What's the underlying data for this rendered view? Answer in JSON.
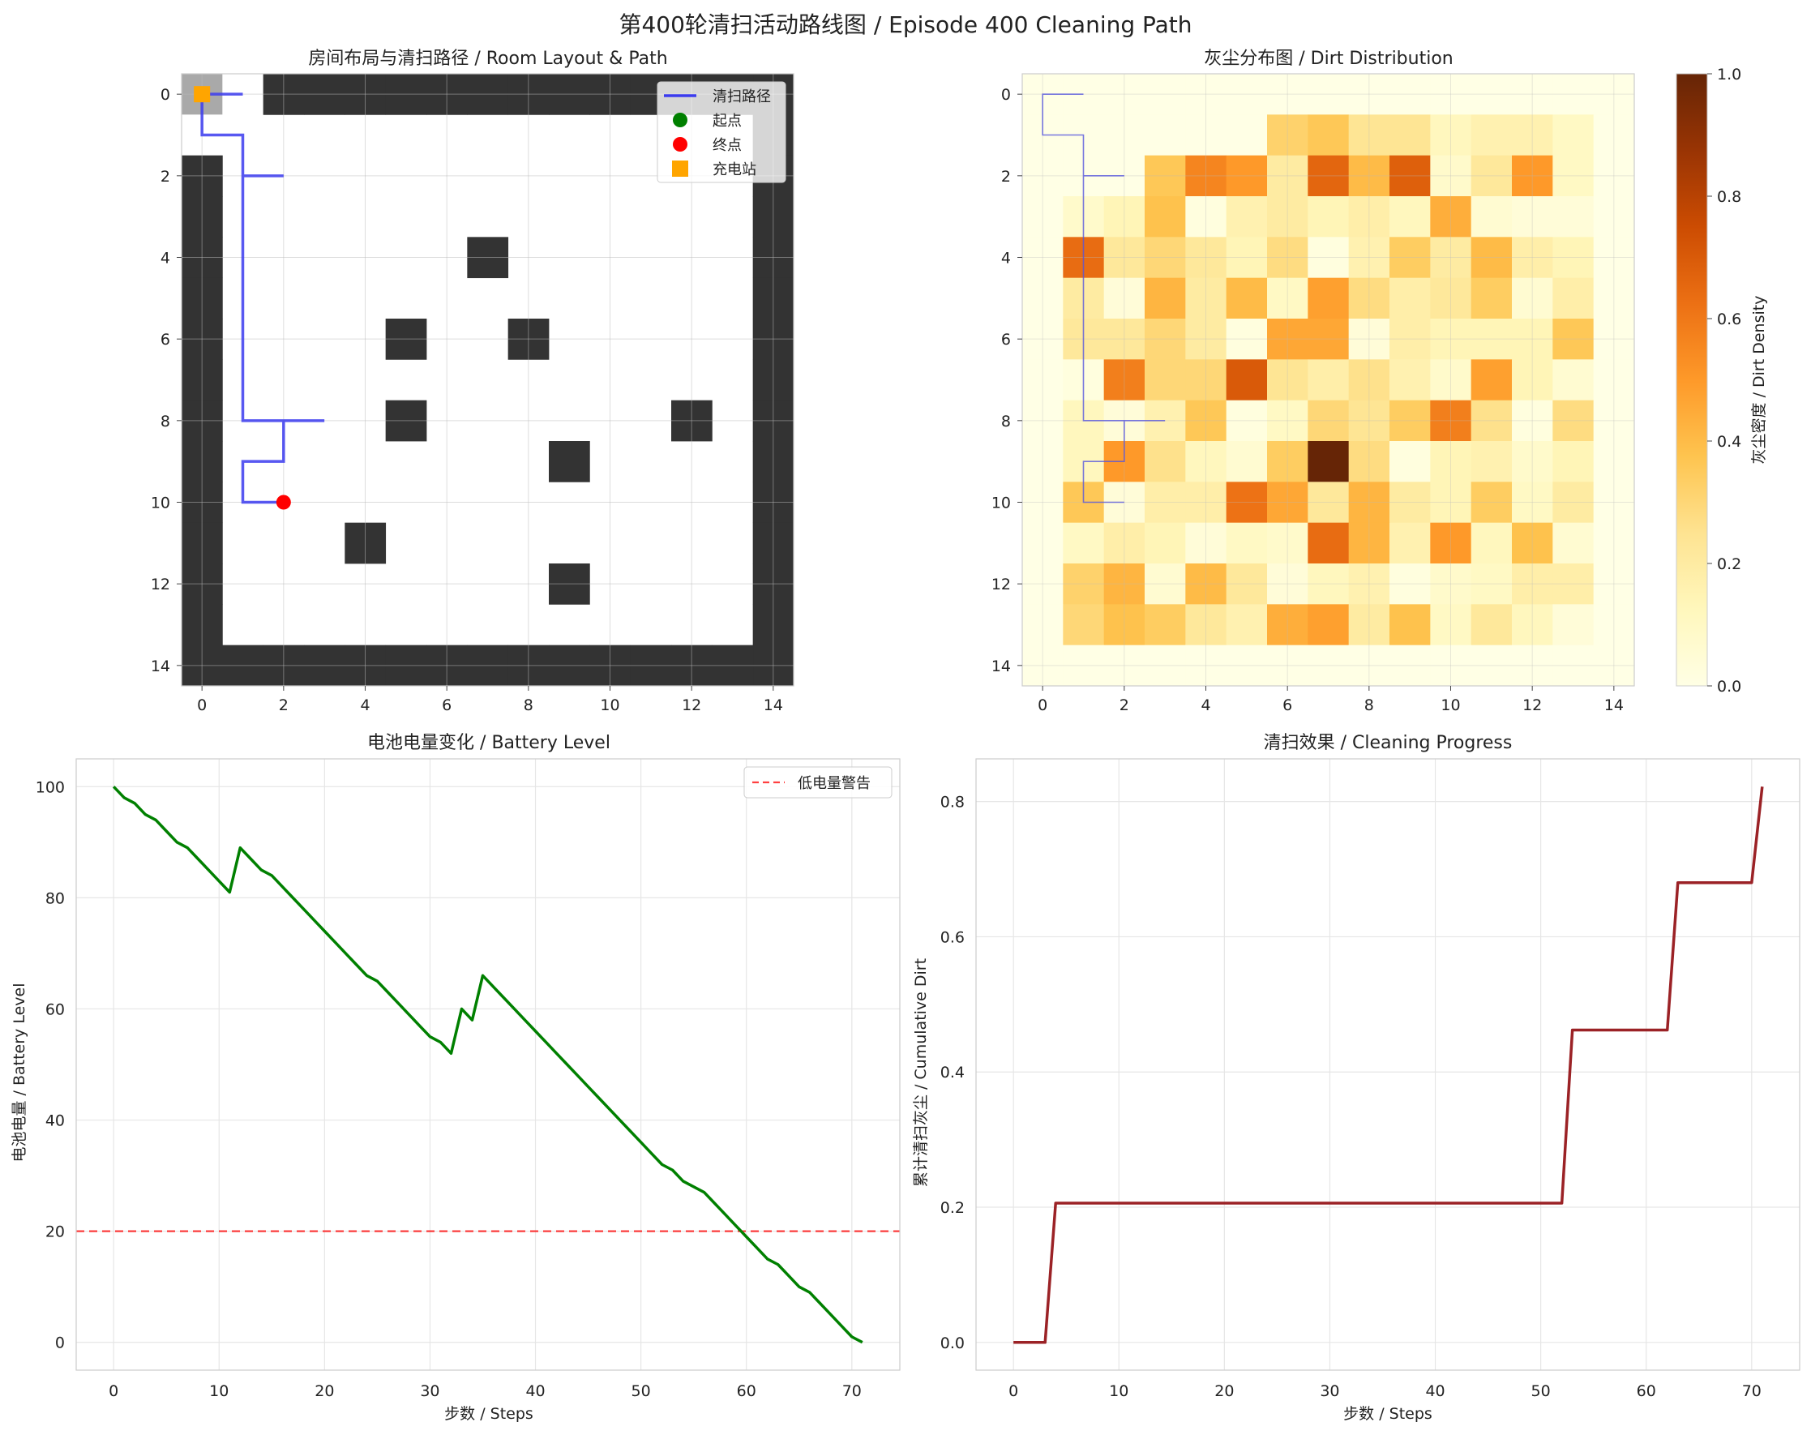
{
  "figure": {
    "title": "第400轮清扫活动路线图 / Episode 400 Cleaning Path"
  },
  "chart_data": [
    {
      "type": "heatmap",
      "title": "房间布局与清扫路径 / Room Layout & Path",
      "xlim": [
        -0.5,
        14.5
      ],
      "ylim": [
        14.5,
        -0.5
      ],
      "xticks": [
        0,
        2,
        4,
        6,
        8,
        10,
        12,
        14
      ],
      "yticks": [
        0,
        2,
        4,
        6,
        8,
        10,
        12,
        14
      ],
      "grid": true,
      "obstacles": [
        [
          0,
          2
        ],
        [
          0,
          3
        ],
        [
          0,
          4
        ],
        [
          0,
          5
        ],
        [
          0,
          6
        ],
        [
          0,
          7
        ],
        [
          0,
          8
        ],
        [
          0,
          9
        ],
        [
          0,
          10
        ],
        [
          0,
          11
        ],
        [
          0,
          12
        ],
        [
          0,
          13
        ],
        [
          14,
          0
        ],
        [
          14,
          1
        ],
        [
          14,
          2
        ],
        [
          14,
          3
        ],
        [
          14,
          4
        ],
        [
          14,
          5
        ],
        [
          14,
          6
        ],
        [
          14,
          7
        ],
        [
          14,
          8
        ],
        [
          14,
          9
        ],
        [
          14,
          10
        ],
        [
          14,
          11
        ],
        [
          14,
          12
        ],
        [
          14,
          13
        ],
        [
          14,
          14
        ],
        [
          2,
          0
        ],
        [
          3,
          0
        ],
        [
          4,
          0
        ],
        [
          5,
          0
        ],
        [
          6,
          0
        ],
        [
          7,
          0
        ],
        [
          8,
          0
        ],
        [
          9,
          0
        ],
        [
          10,
          0
        ],
        [
          11,
          0
        ],
        [
          12,
          0
        ],
        [
          13,
          0
        ],
        [
          0,
          14
        ],
        [
          1,
          14
        ],
        [
          2,
          14
        ],
        [
          3,
          14
        ],
        [
          4,
          14
        ],
        [
          5,
          14
        ],
        [
          6,
          14
        ],
        [
          7,
          14
        ],
        [
          8,
          14
        ],
        [
          9,
          14
        ],
        [
          10,
          14
        ],
        [
          11,
          14
        ],
        [
          12,
          14
        ],
        [
          13,
          14
        ],
        [
          7,
          4
        ],
        [
          5,
          6
        ],
        [
          8,
          6
        ],
        [
          5,
          8
        ],
        [
          12,
          8
        ],
        [
          9,
          9
        ],
        [
          4,
          11
        ],
        [
          9,
          12
        ]
      ],
      "charging_station": [
        0,
        0
      ],
      "path": [
        [
          0,
          0
        ],
        [
          1,
          0
        ],
        [
          0,
          0
        ],
        [
          0,
          1
        ],
        [
          1,
          1
        ],
        [
          1,
          2
        ],
        [
          2,
          2
        ],
        [
          1,
          2
        ],
        [
          1,
          8
        ],
        [
          3,
          8
        ],
        [
          2,
          8
        ],
        [
          2,
          9
        ],
        [
          1,
          9
        ],
        [
          1,
          10
        ],
        [
          2,
          10
        ]
      ],
      "start": [
        0,
        0
      ],
      "end": [
        2,
        10
      ],
      "legend": {
        "location": "upper right",
        "entries": [
          "清扫路径",
          "起点",
          "终点",
          "充电站"
        ]
      },
      "colors": {
        "path": "#3b3bee",
        "start": "#008000",
        "end": "#ff0000",
        "station": "#ffa500",
        "obstacle": "#333333",
        "station_cell": "#a9a9a9"
      }
    },
    {
      "type": "heatmap",
      "title": "灰尘分布图 / Dirt Distribution",
      "xlim": [
        -0.5,
        14.5
      ],
      "ylim": [
        14.5,
        -0.5
      ],
      "xticks": [
        0,
        2,
        4,
        6,
        8,
        10,
        12,
        14
      ],
      "yticks": [
        0,
        2,
        4,
        6,
        8,
        10,
        12,
        14
      ],
      "colorbar": {
        "label": "灰尘密度 / Dirt Density",
        "range": [
          0,
          1
        ],
        "ticks": [
          "0.0",
          "0.2",
          "0.4",
          "0.6",
          "0.8",
          "1.0"
        ],
        "colormap": "YlOrBr"
      },
      "values": [
        [
          0,
          0,
          0,
          0,
          0,
          0,
          0,
          0,
          0,
          0,
          0,
          0,
          0,
          0,
          0
        ],
        [
          0,
          0,
          0,
          0,
          0,
          0,
          0.32,
          0.36,
          0.24,
          0.24,
          0.12,
          0.16,
          0.16,
          0.1,
          0
        ],
        [
          0,
          0,
          0,
          0.36,
          0.56,
          0.5,
          0.2,
          0.66,
          0.4,
          0.68,
          0.08,
          0.22,
          0.5,
          0.1,
          0
        ],
        [
          0,
          0.08,
          0.14,
          0.38,
          0.02,
          0.16,
          0.2,
          0.14,
          0.18,
          0.12,
          0.44,
          0.06,
          0.04,
          0.04,
          0
        ],
        [
          0,
          0.64,
          0.22,
          0.3,
          0.22,
          0.14,
          0.28,
          0.02,
          0.16,
          0.34,
          0.2,
          0.4,
          0.18,
          0.14,
          0
        ],
        [
          0,
          0.2,
          0.04,
          0.42,
          0.2,
          0.4,
          0.1,
          0.48,
          0.28,
          0.18,
          0.22,
          0.34,
          0.06,
          0.18,
          0
        ],
        [
          0,
          0.22,
          0.22,
          0.3,
          0.2,
          0.02,
          0.46,
          0.46,
          0.04,
          0.18,
          0.14,
          0.14,
          0.14,
          0.36,
          0
        ],
        [
          0,
          0.02,
          0.58,
          0.3,
          0.3,
          0.7,
          0.24,
          0.18,
          0.26,
          0.16,
          0.08,
          0.48,
          0.14,
          0.06,
          0
        ],
        [
          0,
          0.12,
          0.04,
          0.16,
          0.36,
          0.02,
          0.1,
          0.3,
          0.24,
          0.34,
          0.58,
          0.26,
          0.02,
          0.28,
          0
        ],
        [
          0,
          0.12,
          0.5,
          0.26,
          0.12,
          0.06,
          0.34,
          1.0,
          0.28,
          0.02,
          0.14,
          0.16,
          0.08,
          0.14,
          0
        ],
        [
          0,
          0.36,
          0.04,
          0.18,
          0.18,
          0.62,
          0.46,
          0.22,
          0.42,
          0.2,
          0.14,
          0.34,
          0.1,
          0.2,
          0
        ],
        [
          0,
          0.1,
          0.18,
          0.14,
          0.04,
          0.1,
          0.08,
          0.64,
          0.42,
          0.16,
          0.5,
          0.12,
          0.38,
          0.06,
          0
        ],
        [
          0,
          0.32,
          0.42,
          0.06,
          0.4,
          0.22,
          0.04,
          0.12,
          0.16,
          0.02,
          0.08,
          0.1,
          0.18,
          0.18,
          0
        ],
        [
          0,
          0.3,
          0.38,
          0.34,
          0.22,
          0.16,
          0.44,
          0.48,
          0.2,
          0.38,
          0.1,
          0.22,
          0.12,
          0.04,
          0
        ],
        [
          0,
          0,
          0,
          0,
          0,
          0,
          0,
          0,
          0,
          0,
          0,
          0,
          0,
          0,
          0
        ]
      ]
    },
    {
      "type": "line",
      "title": "电池电量变化 / Battery Level",
      "xlabel": "步数 / Steps",
      "ylabel": "电池电量 / Battery Level",
      "xlim": [
        -3.55,
        74.55
      ],
      "ylim": [
        -5,
        105
      ],
      "xticks": [
        0,
        10,
        20,
        30,
        40,
        50,
        60,
        70
      ],
      "yticks": [
        0,
        20,
        40,
        60,
        80,
        100
      ],
      "grid": true,
      "x": [
        0,
        1,
        2,
        3,
        4,
        5,
        6,
        7,
        8,
        9,
        10,
        11,
        12,
        13,
        14,
        15,
        16,
        17,
        18,
        19,
        20,
        21,
        22,
        23,
        24,
        25,
        26,
        27,
        28,
        29,
        30,
        31,
        32,
        33,
        34,
        35,
        36,
        37,
        38,
        39,
        40,
        41,
        42,
        43,
        44,
        45,
        46,
        47,
        48,
        49,
        50,
        51,
        52,
        53,
        54,
        55,
        56,
        57,
        58,
        59,
        60,
        61,
        62,
        63,
        64,
        65,
        66,
        67,
        68,
        69,
        70,
        71
      ],
      "series": [
        {
          "color": "#008000",
          "values": [
            100,
            98,
            97,
            95,
            94,
            92,
            90,
            89,
            87,
            85,
            83,
            81,
            89,
            87,
            85,
            84,
            82,
            80,
            78,
            76,
            74,
            72,
            70,
            68,
            66,
            65,
            63,
            61,
            59,
            57,
            55,
            54,
            52,
            60,
            58,
            66,
            64,
            62,
            60,
            58,
            56,
            54,
            52,
            50,
            48,
            46,
            44,
            42,
            40,
            38,
            36,
            34,
            32,
            31,
            29,
            28,
            27,
            25,
            23,
            21,
            19,
            17,
            15,
            14,
            12,
            10,
            9,
            7,
            5,
            3,
            1,
            0
          ]
        }
      ],
      "reference_line": {
        "y": 20,
        "label": "低电量警告",
        "color": "#ff0000",
        "style": "dashed"
      },
      "legend": {
        "location": "upper right",
        "entries": [
          "低电量警告"
        ]
      }
    },
    {
      "type": "line",
      "title": "清扫效果 / Cleaning Progress",
      "xlabel": "步数 / Steps",
      "ylabel": "累计清扫灰尘 / Cumulative Dirt",
      "xlim": [
        -3.55,
        74.55
      ],
      "ylim": [
        -0.041,
        0.8631
      ],
      "xticks": [
        0,
        10,
        20,
        30,
        40,
        50,
        60,
        70
      ],
      "yticks": [
        0.0,
        0.2,
        0.4,
        0.6,
        0.8
      ],
      "grid": true,
      "x": [
        0,
        1,
        2,
        3,
        4,
        5,
        6,
        7,
        8,
        9,
        10,
        11,
        12,
        13,
        14,
        15,
        16,
        17,
        18,
        19,
        20,
        21,
        22,
        23,
        24,
        25,
        26,
        27,
        28,
        29,
        30,
        31,
        32,
        33,
        34,
        35,
        36,
        37,
        38,
        39,
        40,
        41,
        42,
        43,
        44,
        45,
        46,
        47,
        48,
        49,
        50,
        51,
        52,
        53,
        54,
        55,
        56,
        57,
        58,
        59,
        60,
        61,
        62,
        63,
        64,
        65,
        66,
        67,
        68,
        69,
        70,
        71
      ],
      "series": [
        {
          "color": "#9b2226",
          "values": [
            0,
            0,
            0,
            0,
            0.206,
            0.206,
            0.206,
            0.206,
            0.206,
            0.206,
            0.206,
            0.206,
            0.206,
            0.206,
            0.206,
            0.206,
            0.206,
            0.206,
            0.206,
            0.206,
            0.206,
            0.206,
            0.206,
            0.206,
            0.206,
            0.206,
            0.206,
            0.206,
            0.206,
            0.206,
            0.206,
            0.206,
            0.206,
            0.206,
            0.206,
            0.206,
            0.206,
            0.206,
            0.206,
            0.206,
            0.206,
            0.206,
            0.206,
            0.206,
            0.206,
            0.206,
            0.206,
            0.206,
            0.206,
            0.206,
            0.206,
            0.206,
            0.206,
            0.462,
            0.462,
            0.462,
            0.462,
            0.462,
            0.462,
            0.462,
            0.462,
            0.462,
            0.462,
            0.68,
            0.68,
            0.68,
            0.68,
            0.68,
            0.68,
            0.68,
            0.68,
            0.822
          ]
        }
      ]
    }
  ]
}
